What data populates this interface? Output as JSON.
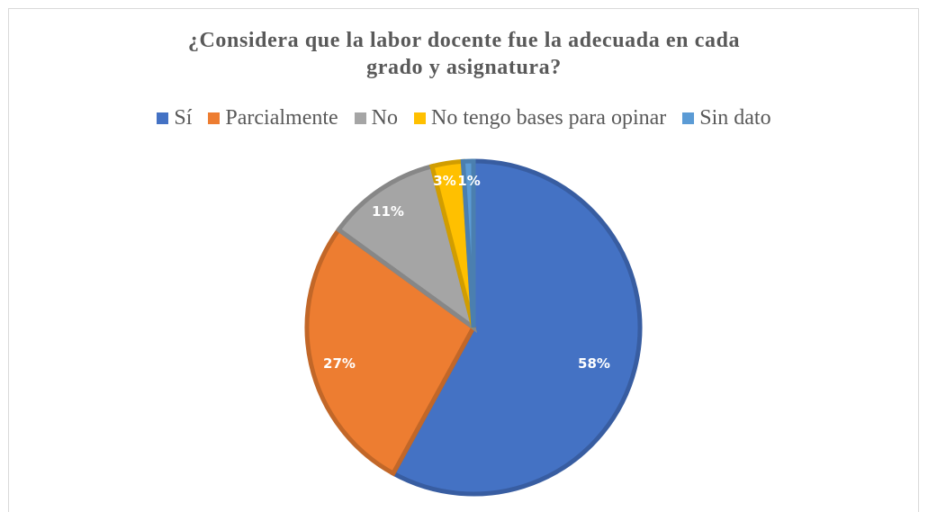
{
  "chart_data": {
    "type": "pie",
    "title_line1": "¿Considera que la labor docente fue la adecuada en cada",
    "title_line2": "grado y asignatura?",
    "legend_position": "top",
    "categories": [
      "Sí",
      "Parcialmente",
      "No",
      "No tengo bases para opinar",
      "Sin dato"
    ],
    "values": [
      58,
      27,
      11,
      3,
      1
    ],
    "labels": [
      "58%",
      "27%",
      "11%",
      "3%",
      "1%"
    ],
    "colors": [
      "#4472C4",
      "#ED7D31",
      "#A5A5A5",
      "#FFC000",
      "#5B9BD5"
    ]
  }
}
